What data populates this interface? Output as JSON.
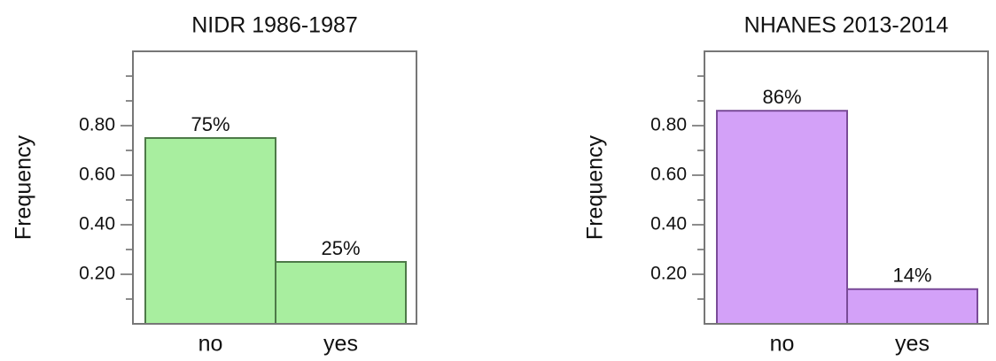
{
  "chart_data": [
    {
      "type": "bar",
      "title": "NIDR 1986-1987",
      "y_label": "Frequency",
      "categories": [
        "no",
        "yes"
      ],
      "values": [
        0.75,
        0.25
      ],
      "value_labels": [
        "75%",
        "25%"
      ],
      "color": "#a8ee9f",
      "edge_color": "#4d7a48",
      "ylim": [
        0,
        1.1
      ],
      "yticks": [
        {
          "value": 0.2,
          "label": "0.20"
        },
        {
          "value": 0.4,
          "label": "0.40"
        },
        {
          "value": 0.6,
          "label": "0.60"
        },
        {
          "value": 0.8,
          "label": "0.80"
        }
      ],
      "yminor": [
        0.1,
        0.3,
        0.5,
        0.7,
        0.9,
        1.0
      ]
    },
    {
      "type": "bar",
      "title": "NHANES 2013-2014",
      "y_label": "Frequency",
      "categories": [
        "no",
        "yes"
      ],
      "values": [
        0.86,
        0.14
      ],
      "value_labels": [
        "86%",
        "14%"
      ],
      "color": "#d3a1f8",
      "edge_color": "#7a4b98",
      "ylim": [
        0,
        1.1
      ],
      "yticks": [
        {
          "value": 0.2,
          "label": "0.20"
        },
        {
          "value": 0.4,
          "label": "0.40"
        },
        {
          "value": 0.6,
          "label": "0.60"
        },
        {
          "value": 0.8,
          "label": "0.80"
        }
      ],
      "yminor": [
        0.1,
        0.3,
        0.5,
        0.7,
        0.9,
        1.0
      ]
    }
  ]
}
